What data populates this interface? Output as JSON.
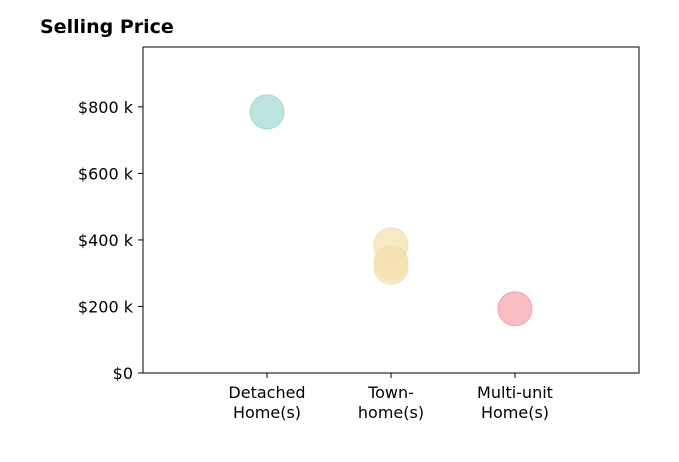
{
  "chart_data": {
    "type": "scatter",
    "title": "Selling Price",
    "categories": [
      [
        "Detached",
        "Home(s)"
      ],
      [
        "Town-",
        "home(s)"
      ],
      [
        "Multi-unit",
        "Home(s)"
      ]
    ],
    "y_ticks": [
      {
        "value": 0,
        "label": "$0"
      },
      {
        "value": 200000,
        "label": "$200 k"
      },
      {
        "value": 400000,
        "label": "$400 k"
      },
      {
        "value": 600000,
        "label": "$600 k"
      },
      {
        "value": 800000,
        "label": "$800 k"
      }
    ],
    "ylim": [
      0,
      980000
    ],
    "xlim": [
      0,
      4
    ],
    "grid": false,
    "points": [
      {
        "category": 0,
        "value": 785000,
        "color": "#9fd8d2"
      },
      {
        "category": 1,
        "value": 385000,
        "color": "#f3dfae"
      },
      {
        "category": 1,
        "value": 332000,
        "color": "#f3dfae"
      },
      {
        "category": 1,
        "value": 318000,
        "color": "#f3dfae"
      },
      {
        "category": 2,
        "value": 193000,
        "color": "#f5a3aa"
      }
    ]
  }
}
